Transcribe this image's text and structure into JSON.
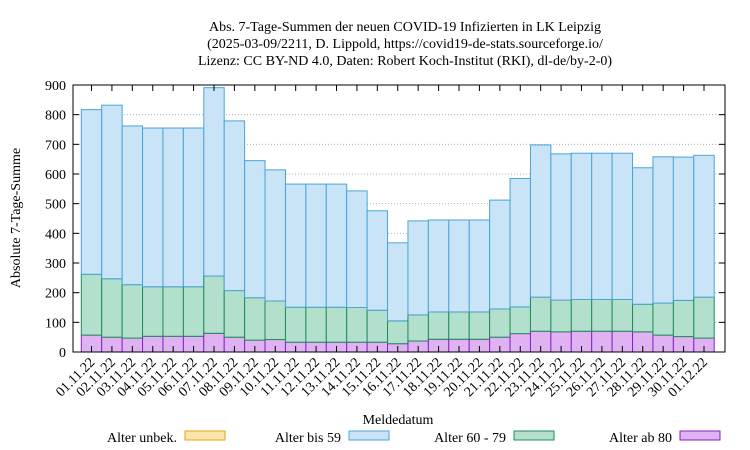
{
  "chart_data": {
    "type": "bar",
    "stacked": true,
    "title_lines": [
      "Abs. 7-Tage-Summen der neuen COVID-19 Infizierten in LK Leipzig",
      "(2025-03-09/2211, D. Lippold, https://covid19-de-stats.sourceforge.io/",
      "Lizenz: CC BY-ND 4.0, Daten: Robert Koch-Institut (RKI), dl-de/by-2-0)"
    ],
    "xlabel": "Meldedatum",
    "ylabel": "Absolute 7-Tage-Summe",
    "ylim": [
      0,
      900
    ],
    "yticks": [
      0,
      100,
      200,
      300,
      400,
      500,
      600,
      700,
      800,
      900
    ],
    "legend_placement": "bottom",
    "categories": [
      "01.11.22",
      "02.11.22",
      "03.11.22",
      "04.11.22",
      "05.11.22",
      "06.11.22",
      "07.11.22",
      "08.11.22",
      "09.11.22",
      "10.11.22",
      "11.11.22",
      "12.11.22",
      "13.11.22",
      "14.11.22",
      "15.11.22",
      "16.11.22",
      "17.11.22",
      "18.11.22",
      "19.11.22",
      "20.11.22",
      "21.11.22",
      "22.11.22",
      "23.11.22",
      "24.11.22",
      "25.11.22",
      "26.11.22",
      "27.11.22",
      "28.11.22",
      "29.11.22",
      "30.11.22",
      "01.12.22"
    ],
    "series": [
      {
        "name": "Alter ab 80",
        "color_fill": "#dfb3f2",
        "color_line": "#8a1fc4",
        "values": [
          57,
          50,
          47,
          53,
          53,
          53,
          63,
          50,
          40,
          42,
          33,
          33,
          33,
          33,
          33,
          28,
          37,
          43,
          43,
          43,
          50,
          62,
          70,
          68,
          70,
          70,
          70,
          68,
          57,
          52,
          47
        ]
      },
      {
        "name": "Alter 60 - 79",
        "color_fill": "#b3e0cc",
        "color_line": "#1f8c5a",
        "values": [
          205,
          197,
          180,
          167,
          167,
          167,
          193,
          157,
          143,
          130,
          118,
          118,
          118,
          117,
          108,
          77,
          88,
          92,
          92,
          92,
          95,
          90,
          115,
          107,
          107,
          107,
          107,
          93,
          108,
          122,
          138
        ]
      },
      {
        "name": "Alter bis 59",
        "color_fill": "#c9e4f7",
        "color_line": "#4aa4d6",
        "values": [
          555,
          585,
          535,
          535,
          535,
          535,
          635,
          572,
          462,
          442,
          415,
          415,
          415,
          393,
          335,
          263,
          317,
          310,
          310,
          310,
          367,
          433,
          513,
          493,
          493,
          493,
          493,
          460,
          493,
          483,
          478
        ]
      },
      {
        "name": "Alter unbek.",
        "color_fill": "#fde4a8",
        "color_line": "#e8a21a",
        "values": [
          0,
          0,
          0,
          0,
          0,
          0,
          0,
          0,
          0,
          0,
          0,
          0,
          0,
          0,
          0,
          0,
          0,
          0,
          0,
          0,
          0,
          0,
          0,
          0,
          0,
          0,
          0,
          0,
          0,
          0,
          0
        ]
      }
    ],
    "legend_order": [
      "Alter unbek.",
      "Alter bis 59",
      "Alter 60 - 79",
      "Alter ab 80"
    ]
  }
}
